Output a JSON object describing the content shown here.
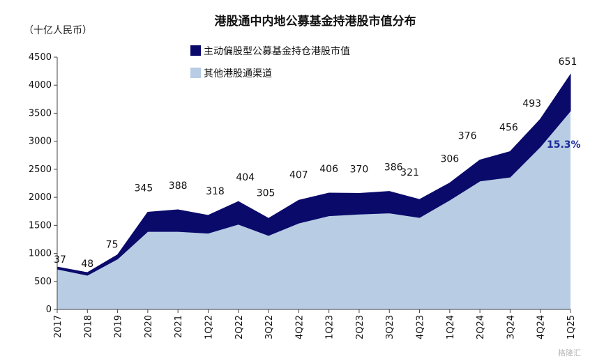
{
  "chart_data": {
    "type": "area",
    "title": "港股通中内地公募基金持港股市值分布",
    "unit_label": "（十亿人民币）",
    "categories": [
      "2017",
      "2018",
      "2019",
      "2020",
      "2021",
      "1Q22",
      "2Q22",
      "3Q22",
      "4Q22",
      "1Q23",
      "2Q23",
      "3Q23",
      "4Q23",
      "1Q24",
      "2Q24",
      "3Q24",
      "4Q24",
      "1Q25"
    ],
    "ylim": [
      0,
      4500
    ],
    "yticks": [
      0,
      500,
      1000,
      1500,
      2000,
      2500,
      3000,
      3500,
      4000,
      4500
    ],
    "stacked": true,
    "series": [
      {
        "name": "其他港股通渠道",
        "color": "#b8cce4",
        "values": [
          720,
          610,
          900,
          1390,
          1390,
          1360,
          1520,
          1320,
          1540,
          1670,
          1700,
          1720,
          1640,
          1950,
          2290,
          2360,
          2900,
          3540
        ]
      },
      {
        "name": "主动偏股型公募基金持仓港股市值",
        "color": "#0a0a6b",
        "values": [
          37,
          48,
          75,
          345,
          388,
          318,
          404,
          305,
          407,
          406,
          370,
          386,
          321,
          306,
          376,
          456,
          493,
          651
        ]
      }
    ],
    "data_labels": [
      "37",
      "48",
      "75",
      "345",
      "388",
      "318",
      "404",
      "305",
      "407",
      "406",
      "370",
      "386",
      "321",
      "306",
      "376",
      "456",
      "493",
      "651"
    ],
    "annotation": "15.3%",
    "legend": "top-center",
    "grid": false
  },
  "watermark": "格隆汇"
}
